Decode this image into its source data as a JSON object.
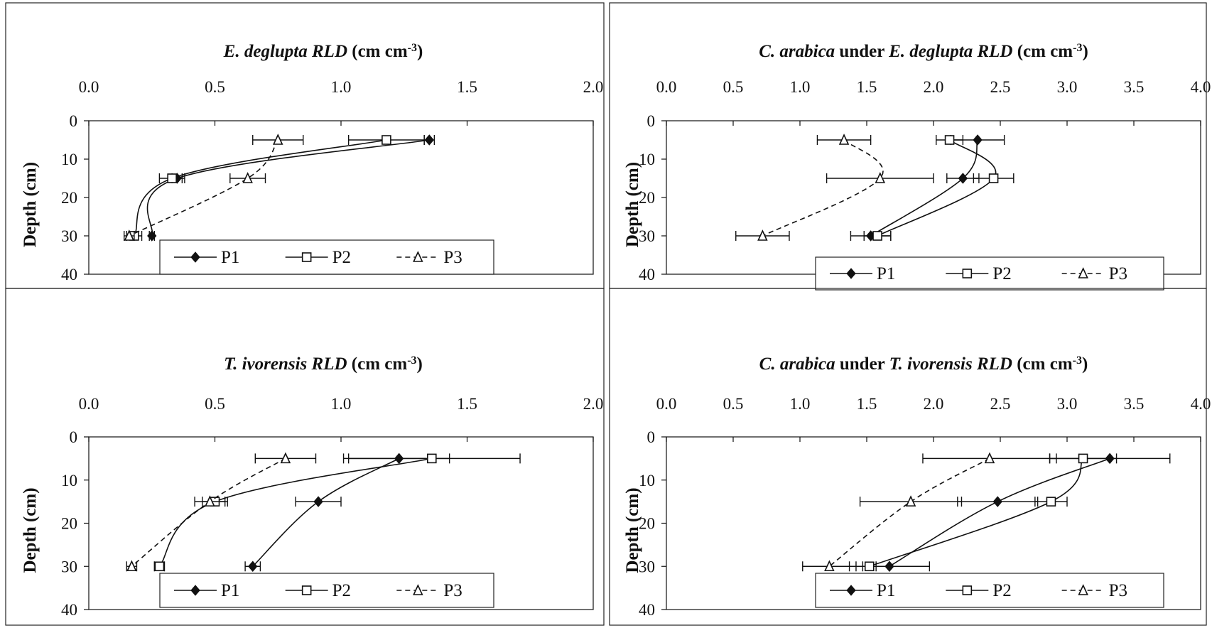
{
  "chart_data": [
    {
      "type": "line",
      "title_parts": [
        "E. deglupta",
        " RLD",
        "  (cm cm",
        "-3",
        ")"
      ],
      "ylabel": "Depth (cm)",
      "x_ticks": [
        "0.0",
        "0.5",
        "1.0",
        "1.5",
        "2.0"
      ],
      "y_ticks": [
        "0",
        "10",
        "20",
        "30",
        "40"
      ],
      "xlim": [
        0,
        2
      ],
      "ylim": [
        0,
        40
      ],
      "y_inverted": true,
      "x_axis_position": "top",
      "legend_position": "bottom",
      "depths": [
        5,
        15,
        30
      ],
      "series": [
        {
          "name": "P1",
          "marker": "diamond",
          "dash": "solid",
          "values": [
            1.35,
            0.35,
            0.25
          ],
          "err": [
            0.02,
            0.02,
            0.01
          ]
        },
        {
          "name": "P2",
          "marker": "square",
          "dash": "solid",
          "values": [
            1.18,
            0.33,
            0.18
          ],
          "err": [
            0.15,
            0.05,
            0.03
          ]
        },
        {
          "name": "P3",
          "marker": "triangle",
          "dash": "dashed",
          "values": [
            0.75,
            0.63,
            0.16
          ],
          "err": [
            0.1,
            0.07,
            0.02
          ]
        }
      ]
    },
    {
      "type": "line",
      "title_parts": [
        "C. arabica",
        " under ",
        "E. deglupta RLD",
        "  (cm cm",
        "-3",
        ")"
      ],
      "ylabel": "Depth (cm)",
      "x_ticks": [
        "0.0",
        "0.5",
        "1.0",
        "1.5",
        "2.0",
        "2.5",
        "3.0",
        "3.5",
        "4.0"
      ],
      "y_ticks": [
        "0",
        "10",
        "20",
        "30",
        "40"
      ],
      "xlim": [
        0,
        4
      ],
      "ylim": [
        0,
        40
      ],
      "y_inverted": true,
      "x_axis_position": "top",
      "legend_position": "bottom-right",
      "depths": [
        5,
        15,
        30
      ],
      "series": [
        {
          "name": "P1",
          "marker": "diamond",
          "dash": "solid",
          "values": [
            2.33,
            2.22,
            1.53
          ],
          "err": [
            0.2,
            0.12,
            0.15
          ]
        },
        {
          "name": "P2",
          "marker": "square",
          "dash": "solid",
          "values": [
            2.12,
            2.45,
            1.58
          ],
          "err": [
            0.1,
            0.15,
            0.1
          ]
        },
        {
          "name": "P3",
          "marker": "triangle",
          "dash": "dashed",
          "values": [
            1.33,
            1.6,
            0.72
          ],
          "err": [
            0.2,
            0.4,
            0.2
          ]
        }
      ]
    },
    {
      "type": "line",
      "title_parts": [
        "T. ivorensis",
        " RLD",
        "  (cm cm",
        "-3",
        ")"
      ],
      "ylabel": "Depth (cm)",
      "x_ticks": [
        "0.0",
        "0.5",
        "1.0",
        "1.5",
        "2.0"
      ],
      "y_ticks": [
        "0",
        "10",
        "20",
        "30",
        "40"
      ],
      "xlim": [
        0,
        2
      ],
      "ylim": [
        0,
        40
      ],
      "y_inverted": true,
      "x_axis_position": "top",
      "legend_position": "bottom",
      "depths": [
        5,
        15,
        30
      ],
      "series": [
        {
          "name": "P1",
          "marker": "diamond",
          "dash": "solid",
          "values": [
            1.23,
            0.91,
            0.65
          ],
          "err": [
            0.2,
            0.09,
            0.03
          ]
        },
        {
          "name": "P2",
          "marker": "square",
          "dash": "solid",
          "values": [
            1.36,
            0.5,
            0.28
          ],
          "err": [
            0.35,
            0.05,
            0.02
          ]
        },
        {
          "name": "P3",
          "marker": "triangle",
          "dash": "dashed",
          "values": [
            0.78,
            0.48,
            0.17
          ],
          "err": [
            0.12,
            0.06,
            0.02
          ]
        }
      ]
    },
    {
      "type": "line",
      "title_parts": [
        "C. arabica",
        " under ",
        "T. ivorensis RLD",
        "  (cm cm",
        "-3",
        ")"
      ],
      "ylabel": "Depth (cm)",
      "x_ticks": [
        "0.0",
        "0.5",
        "1.0",
        "1.5",
        "2.0",
        "2.5",
        "3.0",
        "3.5",
        "4.0"
      ],
      "y_ticks": [
        "0",
        "10",
        "20",
        "30",
        "40"
      ],
      "xlim": [
        0,
        4
      ],
      "ylim": [
        0,
        40
      ],
      "y_inverted": true,
      "x_axis_position": "top",
      "legend_position": "bottom-right",
      "depths": [
        5,
        15,
        30
      ],
      "series": [
        {
          "name": "P1",
          "marker": "diamond",
          "dash": "solid",
          "values": [
            3.32,
            2.48,
            1.67
          ],
          "err": [
            0.45,
            0.3,
            0.3
          ]
        },
        {
          "name": "P2",
          "marker": "square",
          "dash": "solid",
          "values": [
            3.12,
            2.88,
            1.52
          ],
          "err": [
            0.25,
            0.12,
            0.05
          ]
        },
        {
          "name": "P3",
          "marker": "triangle",
          "dash": "dashed",
          "values": [
            2.42,
            1.83,
            1.22
          ],
          "err": [
            0.5,
            0.38,
            0.2
          ]
        }
      ]
    }
  ]
}
